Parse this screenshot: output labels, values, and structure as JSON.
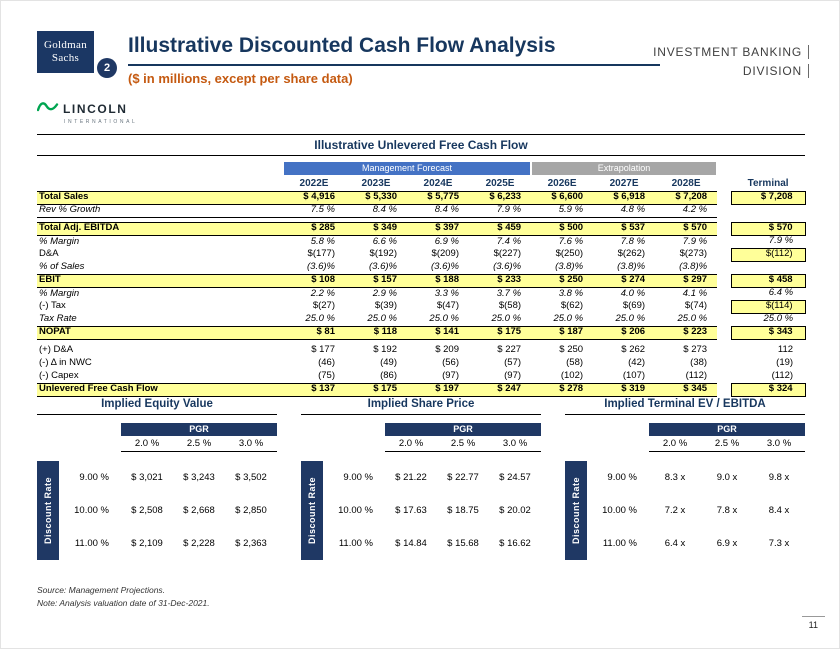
{
  "header": {
    "gs_logo": {
      "line1": "Goldman",
      "line2": "Sachs"
    },
    "badge": "2",
    "title": "Illustrative Discounted Cash Flow Analysis",
    "subtitle": "($ in millions, except per share data)",
    "division": {
      "line1": "INVESTMENT BANKING",
      "line2": "DIVISION"
    },
    "lincoln": {
      "name": "LINCOLN",
      "sub": "INTERNATIONAL"
    }
  },
  "colors": {
    "navy": "#1F3864",
    "forecast_blue": "#4472C4",
    "extrapolation_gray": "#A6A6A6",
    "highlight_yellow": "#FFFF99",
    "subtitle_orange": "#C55A11",
    "lincoln_green": "#00A551"
  },
  "fcf_table": {
    "title": "Illustrative Unlevered Free Cash Flow",
    "group_headers": [
      {
        "label": "Management Forecast",
        "span": 4
      },
      {
        "label": "Extrapolation",
        "span": 3
      }
    ],
    "columns": [
      "2022E",
      "2023E",
      "2024E",
      "2025E",
      "2026E",
      "2027E",
      "2028E"
    ],
    "terminal_label": "Terminal",
    "rows": [
      {
        "label": "Total Sales",
        "hl": true,
        "values": [
          "$ 4,916",
          "$ 5,330",
          "$ 5,775",
          "$ 6,233",
          "$ 6,600",
          "$ 6,918",
          "$ 7,208"
        ],
        "terminal": "$ 7,208",
        "thl": true
      },
      {
        "label": "Rev % Growth",
        "italic": true,
        "ul": true,
        "values": [
          "7.5 %",
          "8.4 %",
          "8.4 %",
          "7.9 %",
          "5.9 %",
          "4.8 %",
          "4.2 %"
        ],
        "terminal": ""
      },
      {
        "type": "spacer"
      },
      {
        "label": "Total Adj. EBITDA",
        "hl": true,
        "values": [
          "$ 285",
          "$ 349",
          "$ 397",
          "$ 459",
          "$ 500",
          "$ 537",
          "$ 570"
        ],
        "terminal": "$ 570",
        "thl": true
      },
      {
        "label": "% Margin",
        "italic": true,
        "values": [
          "5.8 %",
          "6.6 %",
          "6.9 %",
          "7.4 %",
          "7.6 %",
          "7.8 %",
          "7.9 %"
        ],
        "terminal": "7.9 %"
      },
      {
        "label": "D&A",
        "values": [
          "$(177)",
          "$(192)",
          "$(209)",
          "$(227)",
          "$(250)",
          "$(262)",
          "$(273)"
        ],
        "terminal": "$(112)",
        "thl": true
      },
      {
        "label": "% of Sales",
        "italic": true,
        "values": [
          "(3.6)%",
          "(3.6)%",
          "(3.6)%",
          "(3.6)%",
          "(3.8)%",
          "(3.8)%",
          "(3.8)%"
        ],
        "terminal": ""
      },
      {
        "label": "EBIT",
        "hl": true,
        "values": [
          "$ 108",
          "$ 157",
          "$ 188",
          "$ 233",
          "$ 250",
          "$ 274",
          "$ 297"
        ],
        "terminal": "$ 458",
        "thl": true
      },
      {
        "label": "% Margin",
        "italic": true,
        "values": [
          "2.2 %",
          "2.9 %",
          "3.3 %",
          "3.7 %",
          "3.8 %",
          "4.0 %",
          "4.1 %"
        ],
        "terminal": "6.4 %"
      },
      {
        "label": "(-) Tax",
        "values": [
          "$(27)",
          "$(39)",
          "$(47)",
          "$(58)",
          "$(62)",
          "$(69)",
          "$(74)"
        ],
        "terminal": "$(114)",
        "thl": true
      },
      {
        "label": "Tax Rate",
        "italic": true,
        "values": [
          "25.0 %",
          "25.0 %",
          "25.0 %",
          "25.0 %",
          "25.0 %",
          "25.0 %",
          "25.0 %"
        ],
        "terminal": "25.0 %"
      },
      {
        "label": "NOPAT",
        "hl": true,
        "values": [
          "$ 81",
          "$ 118",
          "$ 141",
          "$ 175",
          "$ 187",
          "$ 206",
          "$ 223"
        ],
        "terminal": "$ 343",
        "thl": true
      },
      {
        "type": "spacer"
      },
      {
        "label": "(+) D&A",
        "values": [
          "$ 177",
          "$ 192",
          "$ 209",
          "$ 227",
          "$ 250",
          "$ 262",
          "$ 273"
        ],
        "terminal": "112"
      },
      {
        "label": "(-) Δ in NWC",
        "values": [
          "(46)",
          "(49)",
          "(56)",
          "(57)",
          "(58)",
          "(42)",
          "(38)"
        ],
        "terminal": "(19)"
      },
      {
        "label": "(-) Capex",
        "values": [
          "(75)",
          "(86)",
          "(97)",
          "(97)",
          "(102)",
          "(107)",
          "(112)"
        ],
        "terminal": "(112)"
      },
      {
        "label": "Unlevered Free Cash Flow",
        "hl": true,
        "values": [
          "$ 137",
          "$ 175",
          "$ 197",
          "$ 247",
          "$ 278",
          "$ 319",
          "$ 345"
        ],
        "terminal": "$ 324",
        "thl": true
      }
    ]
  },
  "sensitivity_tables": [
    {
      "title": "Implied Equity Value",
      "pgr_label": "PGR",
      "col_headers": [
        "2.0 %",
        "2.5 %",
        "3.0 %"
      ],
      "row_axis_label": "Discount Rate",
      "rows": [
        {
          "rate": "9.00 %",
          "values": [
            "$ 3,021",
            "$ 3,243",
            "$ 3,502"
          ]
        },
        {
          "rate": "10.00 %",
          "values": [
            "$ 2,508",
            "$ 2,668",
            "$ 2,850"
          ]
        },
        {
          "rate": "11.00 %",
          "values": [
            "$ 2,109",
            "$ 2,228",
            "$ 2,363"
          ]
        }
      ]
    },
    {
      "title": "Implied Share Price",
      "pgr_label": "PGR",
      "col_headers": [
        "2.0 %",
        "2.5 %",
        "3.0 %"
      ],
      "row_axis_label": "Discount Rate",
      "rows": [
        {
          "rate": "9.00 %",
          "values": [
            "$ 21.22",
            "$ 22.77",
            "$ 24.57"
          ]
        },
        {
          "rate": "10.00 %",
          "values": [
            "$ 17.63",
            "$ 18.75",
            "$ 20.02"
          ]
        },
        {
          "rate": "11.00 %",
          "values": [
            "$ 14.84",
            "$ 15.68",
            "$ 16.62"
          ]
        }
      ]
    },
    {
      "title": "Implied Terminal EV / EBITDA",
      "pgr_label": "PGR",
      "col_headers": [
        "2.0 %",
        "2.5 %",
        "3.0 %"
      ],
      "row_axis_label": "Discount Rate",
      "rows": [
        {
          "rate": "9.00 %",
          "values": [
            "8.3 x",
            "9.0 x",
            "9.8 x"
          ]
        },
        {
          "rate": "10.00 %",
          "values": [
            "7.2 x",
            "7.8 x",
            "8.4 x"
          ]
        },
        {
          "rate": "11.00 %",
          "values": [
            "6.4 x",
            "6.9 x",
            "7.3 x"
          ]
        }
      ]
    }
  ],
  "footer": {
    "source": "Source: Management Projections.",
    "note": "Note: Analysis valuation date of 31-Dec-2021.",
    "page": "11"
  }
}
